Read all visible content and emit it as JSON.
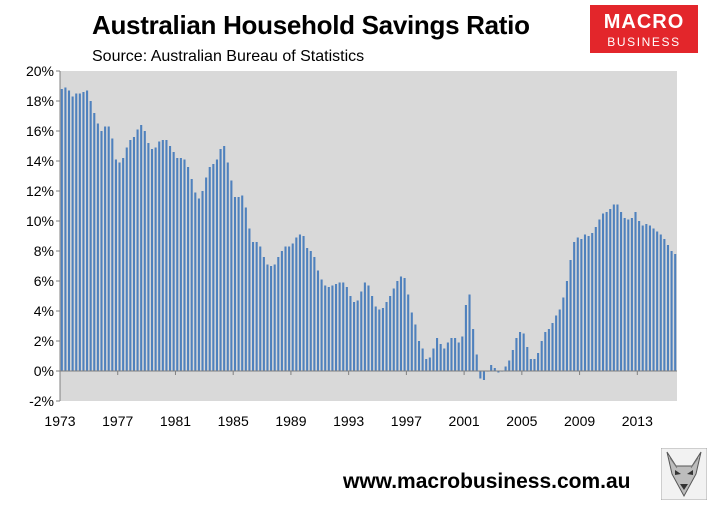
{
  "header": {
    "title": "Australian Household Savings Ratio",
    "subtitle": "Source: Australian Bureau of Statistics"
  },
  "logo": {
    "line1": "MACRO",
    "line2": "BUSINESS",
    "color": "#e3262b"
  },
  "footer": {
    "url": "www.macrobusiness.com.au"
  },
  "chart_data": {
    "type": "bar",
    "title": "Australian Household Savings Ratio",
    "xlabel": "",
    "ylabel": "",
    "ylim": [
      -2,
      20
    ],
    "yticks": [
      "-2%",
      "0%",
      "2%",
      "4%",
      "6%",
      "8%",
      "10%",
      "12%",
      "14%",
      "16%",
      "18%",
      "20%"
    ],
    "xticks": [
      "1973",
      "1977",
      "1981",
      "1985",
      "1989",
      "1993",
      "1997",
      "2001",
      "2005",
      "2009",
      "2013"
    ],
    "x_start": "1973",
    "frequency": "quarterly",
    "grid": false,
    "plot_background": "#d9d9d9",
    "bar_color": "#4f81bd",
    "series": [
      {
        "values": [
          18.8,
          18.9,
          18.7,
          18.3,
          18.5,
          18.5,
          18.6,
          18.7,
          18.0,
          17.2,
          16.5,
          16.0,
          16.3,
          16.3,
          15.5,
          14.1,
          13.9,
          14.2,
          14.9,
          15.4,
          15.6,
          16.1,
          16.4,
          16.0,
          15.2,
          14.8,
          14.9,
          15.3,
          15.4,
          15.4,
          15.0,
          14.6,
          14.2,
          14.2,
          14.1,
          13.6,
          12.8,
          11.9,
          11.5,
          12.0,
          12.9,
          13.6,
          13.8,
          14.1,
          14.8,
          15.0,
          13.9,
          12.7,
          11.6,
          11.6,
          11.7,
          10.9,
          9.5,
          8.6,
          8.6,
          8.3,
          7.6,
          7.1,
          7.0,
          7.1,
          7.6,
          8.0,
          8.3,
          8.3,
          8.5,
          8.9,
          9.1,
          9.0,
          8.2,
          8.0,
          7.6,
          6.7,
          6.1,
          5.7,
          5.6,
          5.7,
          5.8,
          5.9,
          5.9,
          5.6,
          5.0,
          4.6,
          4.7,
          5.3,
          5.9,
          5.7,
          5.0,
          4.3,
          4.1,
          4.2,
          4.6,
          5.0,
          5.5,
          6.0,
          6.3,
          6.2,
          5.1,
          3.9,
          3.1,
          2.0,
          1.5,
          0.8,
          0.9,
          1.5,
          2.2,
          1.8,
          1.5,
          1.9,
          2.2,
          2.2,
          1.9,
          2.3,
          4.4,
          5.1,
          2.8,
          1.1,
          -0.5,
          -0.6,
          0.0,
          0.4,
          0.2,
          -0.1,
          0.0,
          0.3,
          0.7,
          1.4,
          2.2,
          2.6,
          2.5,
          1.6,
          0.8,
          0.8,
          1.2,
          2.0,
          2.6,
          2.8,
          3.2,
          3.7,
          4.1,
          4.9,
          6.0,
          7.4,
          8.6,
          8.9,
          8.8,
          9.1,
          9.0,
          9.2,
          9.6,
          10.1,
          10.5,
          10.6,
          10.8,
          11.1,
          11.1,
          10.6,
          10.2,
          10.1,
          10.2,
          10.6,
          10.0,
          9.7,
          9.8,
          9.7,
          9.5,
          9.3,
          9.1,
          8.8,
          8.4,
          8.0,
          7.8
        ]
      }
    ]
  }
}
